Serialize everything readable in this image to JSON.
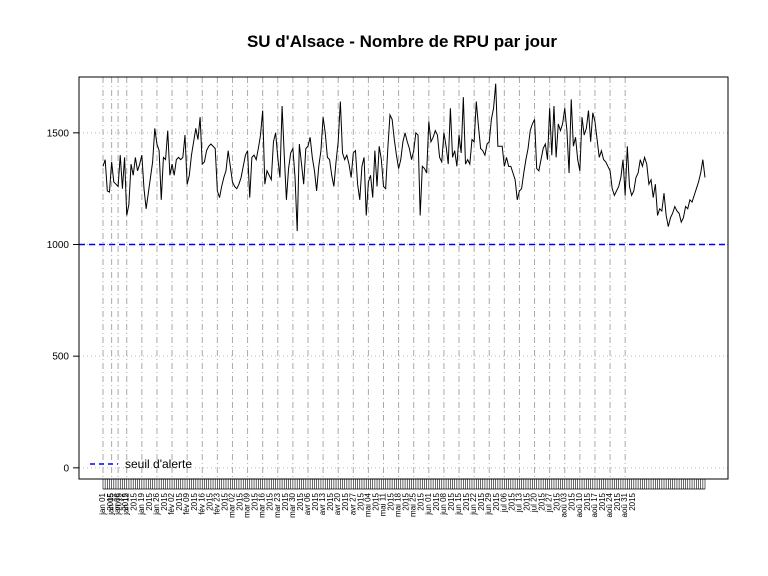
{
  "chart_data": {
    "type": "line",
    "title": "SU d'Alsace  - Nombre de RPU par jour",
    "xlabel": "",
    "ylabel": "",
    "ylim": [
      -50,
      1750
    ],
    "yticks": [
      0,
      500,
      1000,
      1500
    ],
    "x_start_date": "2015-01-01",
    "x_end_date": "2015-08-31",
    "grid": "vertical dashed lines at weekly ticks, horizontal dotted at y ticks",
    "threshold": {
      "value": 1000,
      "color": "#0000ff",
      "style": "dashed",
      "label": "seuil d'alerte"
    },
    "legend_position": "bottom-left",
    "line_color": "#000000",
    "xtick_labels": [
      "jan 01",
      "jan 05",
      "jan 08",
      "jan 12",
      "jan 19",
      "jan 26",
      "fév 02",
      "fév 09",
      "fév 16",
      "fév 23",
      "mar 02",
      "mar 09",
      "mar 16",
      "mar 23",
      "mar 30",
      "avr 06",
      "avr 13",
      "avr 20",
      "avr 27",
      "mai 04",
      "mai 11",
      "mai 18",
      "mai 25",
      "jun 01",
      "jun 08",
      "jun 15",
      "jun 22",
      "jun 29",
      "jul 06",
      "jul 13",
      "jul 20",
      "jul 27",
      "aoû 03",
      "aoû 10",
      "aoû 17",
      "aoû 24",
      "aoû 31"
    ],
    "xtick_year_label": "2015",
    "series": [
      {
        "values": [
          1350,
          1380,
          1240,
          1235,
          1370,
          1280,
          1270,
          1260,
          1400,
          1250,
          1390,
          1130,
          1180,
          1360,
          1310,
          1390,
          1330,
          1360,
          1400,
          1250,
          1160,
          1230,
          1300,
          1370,
          1520,
          1450,
          1420,
          1200,
          1390,
          1380,
          1510,
          1310,
          1360,
          1310,
          1380,
          1390,
          1380,
          1390,
          1490,
          1270,
          1310,
          1400,
          1460,
          1520,
          1470,
          1570,
          1360,
          1370,
          1420,
          1440,
          1450,
          1440,
          1430,
          1240,
          1210,
          1260,
          1300,
          1330,
          1420,
          1350,
          1280,
          1260,
          1250,
          1270,
          1300,
          1350,
          1400,
          1420,
          1210,
          1390,
          1400,
          1380,
          1430,
          1490,
          1600,
          1270,
          1330,
          1310,
          1290,
          1460,
          1500,
          1390,
          1300,
          1620,
          1400,
          1200,
          1340,
          1410,
          1430,
          1300,
          1060,
          1450,
          1360,
          1270,
          1430,
          1440,
          1480,
          1390,
          1330,
          1240,
          1350,
          1420,
          1570,
          1500,
          1390,
          1380,
          1310,
          1260,
          1370,
          1460,
          1640,
          1410,
          1380,
          1400,
          1360,
          1300,
          1410,
          1420,
          1270,
          1200,
          1350,
          1390,
          1130,
          1280,
          1310,
          1210,
          1420,
          1260,
          1440,
          1380,
          1260,
          1250,
          1430,
          1580,
          1560,
          1470,
          1400,
          1340,
          1380,
          1460,
          1500,
          1460,
          1430,
          1380,
          1420,
          1500,
          1490,
          1130,
          1350,
          1340,
          1320,
          1550,
          1460,
          1480,
          1510,
          1490,
          1390,
          1370,
          1500,
          1440,
          1360,
          1610,
          1390,
          1420,
          1350,
          1490,
          1410,
          1660,
          1360,
          1380,
          1360,
          1470,
          1460,
          1640,
          1530,
          1430,
          1420,
          1400,
          1450,
          1460,
          1560,
          1610,
          1720,
          1440,
          1440,
          1440,
          1350,
          1390,
          1350,
          1350,
          1320,
          1290,
          1200,
          1240,
          1250,
          1320,
          1380,
          1430,
          1510,
          1540,
          1560,
          1340,
          1330,
          1380,
          1430,
          1450,
          1380,
          1610,
          1400,
          1620,
          1390,
          1540,
          1510,
          1540,
          1610,
          1510,
          1320,
          1650,
          1440,
          1480,
          1380,
          1330,
          1570,
          1490,
          1520,
          1600,
          1460,
          1590,
          1550,
          1470,
          1390,
          1420,
          1380,
          1370,
          1350,
          1330,
          1250,
          1220,
          1240,
          1260,
          1300,
          1380,
          1220,
          1440,
          1260,
          1220,
          1240,
          1300,
          1320,
          1380,
          1350,
          1390,
          1360,
          1270,
          1290,
          1210,
          1270,
          1130,
          1160,
          1150,
          1230,
          1130,
          1080,
          1120,
          1140,
          1170,
          1150,
          1140,
          1100,
          1120,
          1170,
          1160,
          1200,
          1190,
          1220,
          1250,
          1280,
          1320,
          1380,
          1300
        ]
      }
    ]
  }
}
